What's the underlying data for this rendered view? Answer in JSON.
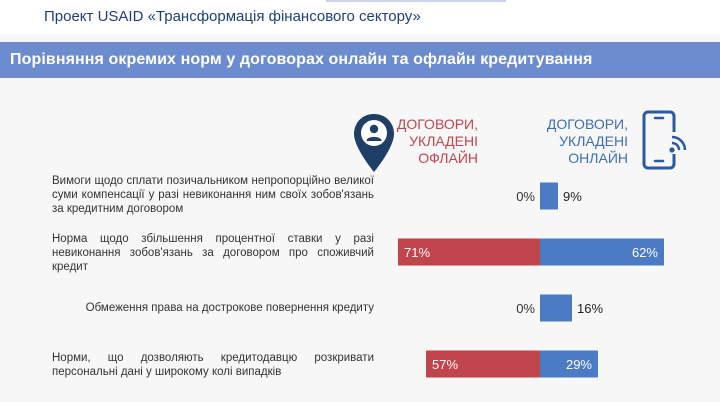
{
  "header": {
    "project_title": "Проект USAID «Трансформація фінансового сектору»"
  },
  "banner": {
    "title": "Порівняння окремих норм у договорах онлайн та офлайн кредитування"
  },
  "columns": {
    "offline_label": "ДОГОВОРИ, УКЛАДЕНІ ОФЛАЙН",
    "online_label": "ДОГОВОРИ, УКЛАДЕНІ ОНЛАЙН"
  },
  "icons": {
    "offline": "map-pin-person-icon",
    "online": "smartphone-wifi-icon"
  },
  "colors": {
    "offline": "#c1454c",
    "online": "#4a7bc4",
    "header_text": "#1f3f7a",
    "banner": "#6d8cd0"
  },
  "chart_data": {
    "type": "bar",
    "orientation": "diverging-horizontal",
    "categories": [
      "Вимоги щодо сплати позичальником непропорційно великої суми компенсації у разі невиконання ним своїх зобов'язань за кредитним договором",
      "Норма щодо збільшення процентної ставки у разі невиконання зобов'язань за договором про споживчий кредит",
      "Обмеження права на дострокове повернення кредиту",
      "Норми, що дозволяють кредитодавцю розкривати персональні дані у широкому колі випадків"
    ],
    "series": [
      {
        "name": "ДОГОВОРИ, УКЛАДЕНІ ОФЛАЙН",
        "values": [
          0,
          71,
          0,
          57
        ],
        "labels": [
          "0%",
          "71%",
          "0%",
          "57%"
        ]
      },
      {
        "name": "ДОГОВОРИ, УКЛАДЕНІ ОНЛАЙН",
        "values": [
          9,
          62,
          16,
          29
        ],
        "labels": [
          "9%",
          "62%",
          "16%",
          "29%"
        ]
      }
    ],
    "unit": "%"
  }
}
